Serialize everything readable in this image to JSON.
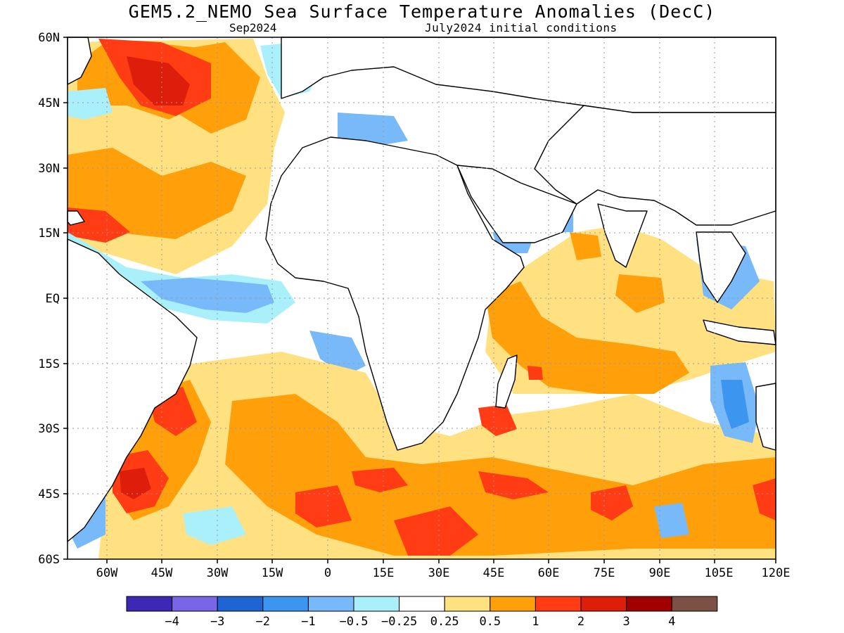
{
  "map": {
    "title": "GEM5.2_NEMO Sea Surface Temperature Anomalies (DecC)",
    "subtitle_left": "Sep2024",
    "subtitle_right": "July2024 initial conditions",
    "lat_labels": [
      "60N",
      "45N",
      "30N",
      "15N",
      "EQ",
      "15S",
      "30S",
      "45S",
      "60S"
    ],
    "lon_labels": [
      "60W",
      "45W",
      "30W",
      "15W",
      "0",
      "15E",
      "30E",
      "45E",
      "60E",
      "75E",
      "90E",
      "105E",
      "120E"
    ]
  },
  "colorbar": {
    "colors": [
      "#3c28b4",
      "#7866e6",
      "#1e64d2",
      "#3c96f0",
      "#78b9fa",
      "#aaf0fa",
      "#ffffff",
      "#ffe182",
      "#ffa00a",
      "#ff3c14",
      "#dc1e0a",
      "#a00000",
      "#7c5045"
    ],
    "labels": [
      "−4",
      "−3",
      "−2",
      "−1",
      "−0.5",
      "−0.25",
      "0.25",
      "0.5",
      "1",
      "2",
      "3",
      "4"
    ]
  }
}
